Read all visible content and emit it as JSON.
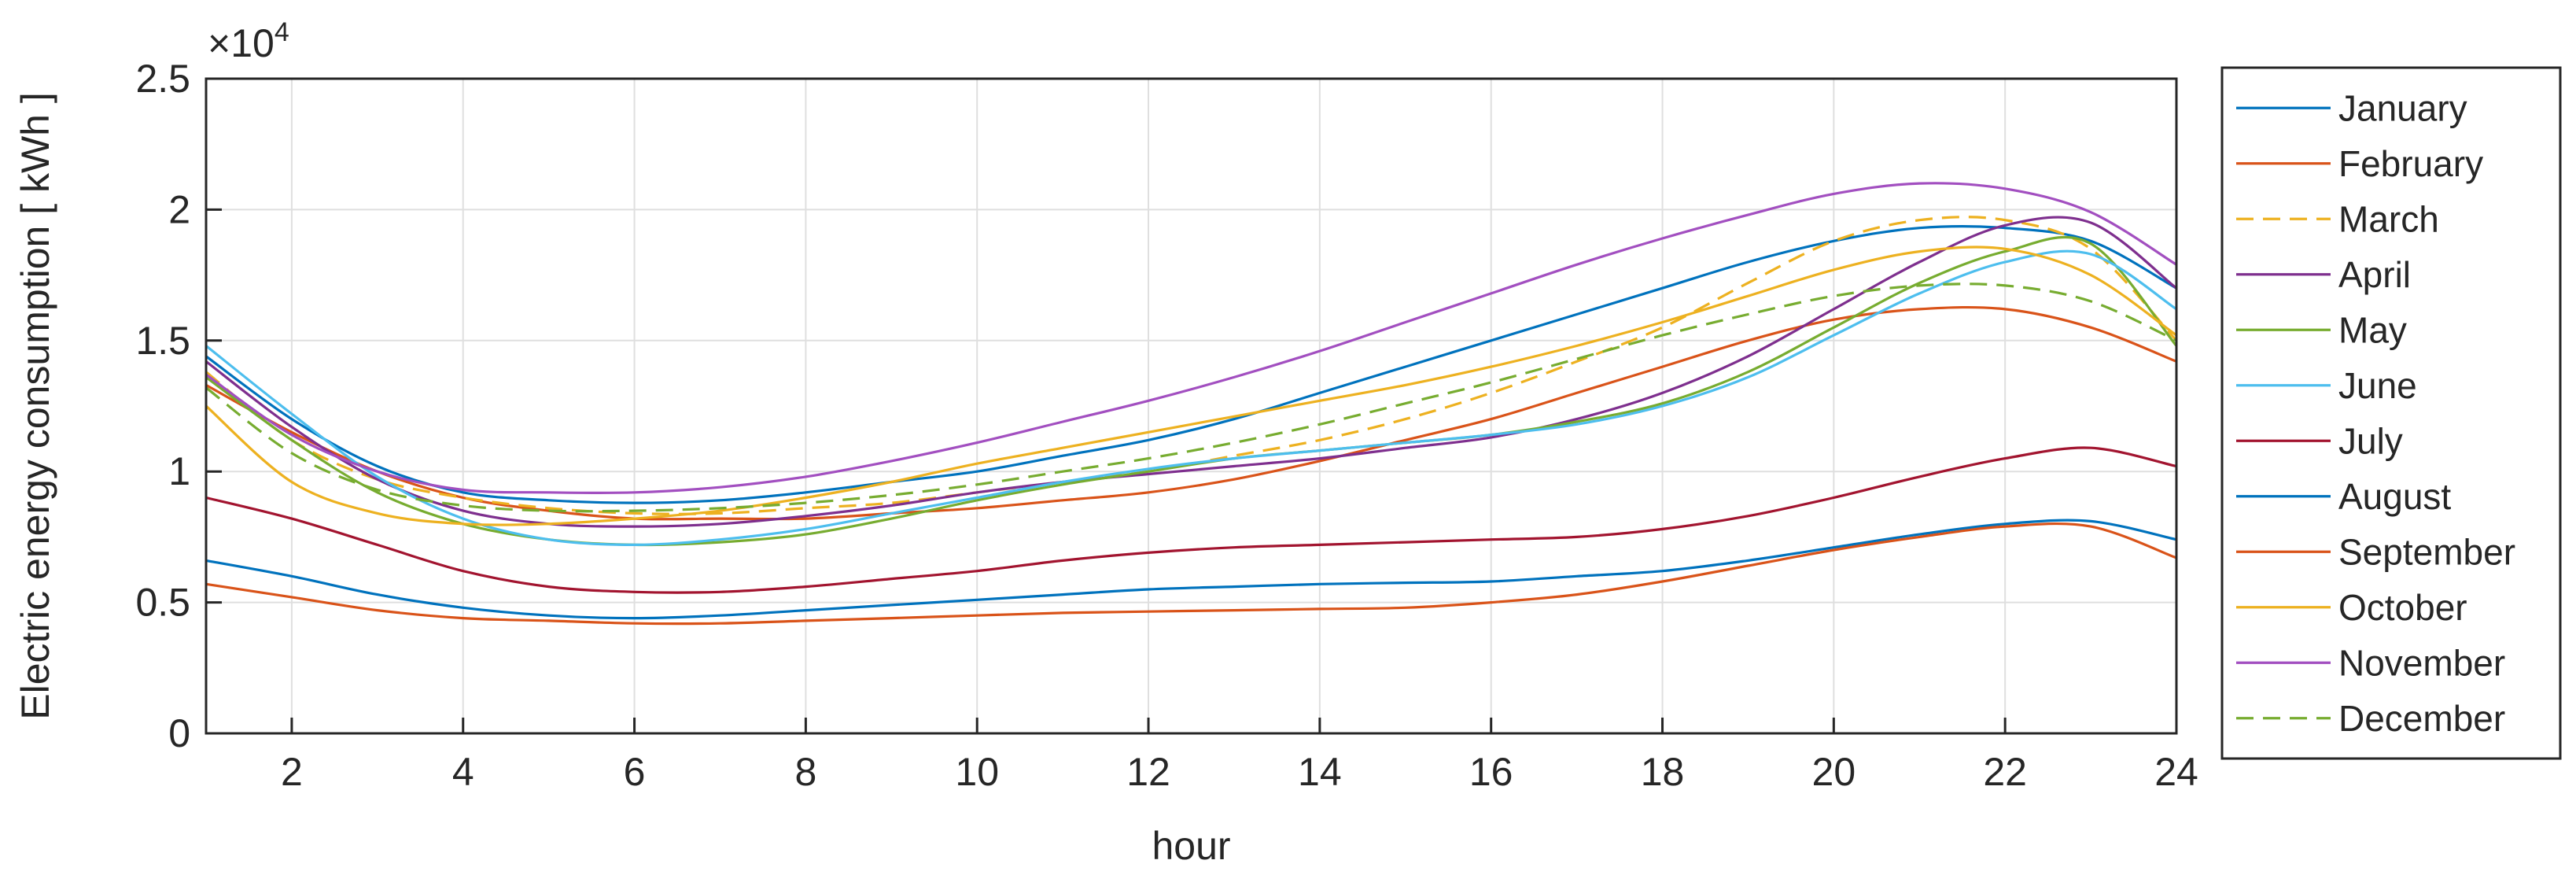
{
  "chart_data": {
    "type": "line",
    "xlabel": "hour",
    "ylabel": "Electric energy consumption  [ kWh ]",
    "exponent_label": "×10",
    "exponent_power": "4",
    "xlim": [
      1,
      24
    ],
    "ylim": [
      0,
      2.5
    ],
    "x_ticks": [
      2,
      4,
      6,
      8,
      10,
      12,
      14,
      16,
      18,
      20,
      22,
      24
    ],
    "y_ticks": [
      0,
      0.5,
      1,
      1.5,
      2,
      2.5
    ],
    "x_tick_labels": [
      "2",
      "4",
      "6",
      "8",
      "10",
      "12",
      "14",
      "16",
      "18",
      "20",
      "22",
      "24"
    ],
    "y_tick_labels": [
      "0",
      "0.5",
      "1",
      "1.5",
      "2",
      "2.5"
    ],
    "grid": true,
    "legend_position": "outside-right",
    "x": [
      1,
      2,
      3,
      4,
      5,
      6,
      7,
      8,
      9,
      10,
      11,
      12,
      13,
      14,
      15,
      16,
      17,
      18,
      19,
      20,
      21,
      22,
      23,
      24
    ],
    "series": [
      {
        "name": "January",
        "color": "#0072BD",
        "dash": false,
        "values": [
          1.44,
          1.2,
          1.02,
          0.92,
          0.89,
          0.88,
          0.89,
          0.92,
          0.96,
          1.0,
          1.06,
          1.12,
          1.2,
          1.3,
          1.4,
          1.5,
          1.6,
          1.7,
          1.8,
          1.88,
          1.93,
          1.93,
          1.88,
          1.7
        ]
      },
      {
        "name": "February",
        "color": "#D95319",
        "dash": false,
        "values": [
          1.33,
          1.15,
          1.0,
          0.9,
          0.85,
          0.82,
          0.82,
          0.82,
          0.84,
          0.86,
          0.89,
          0.92,
          0.97,
          1.04,
          1.12,
          1.2,
          1.3,
          1.4,
          1.5,
          1.58,
          1.62,
          1.62,
          1.55,
          1.42
        ]
      },
      {
        "name": "March",
        "color": "#EDB120",
        "dash": true,
        "values": [
          1.38,
          1.12,
          0.97,
          0.9,
          0.86,
          0.84,
          0.84,
          0.86,
          0.88,
          0.92,
          0.96,
          1.0,
          1.06,
          1.12,
          1.2,
          1.3,
          1.42,
          1.55,
          1.72,
          1.88,
          1.96,
          1.96,
          1.85,
          1.5
        ]
      },
      {
        "name": "April",
        "color": "#7E2F8E",
        "dash": false,
        "values": [
          1.42,
          1.17,
          0.97,
          0.85,
          0.8,
          0.79,
          0.8,
          0.83,
          0.87,
          0.92,
          0.96,
          0.99,
          1.02,
          1.05,
          1.09,
          1.13,
          1.2,
          1.3,
          1.44,
          1.62,
          1.8,
          1.94,
          1.95,
          1.7
        ]
      },
      {
        "name": "May",
        "color": "#77AC30",
        "dash": false,
        "values": [
          1.36,
          1.12,
          0.92,
          0.8,
          0.74,
          0.72,
          0.73,
          0.76,
          0.82,
          0.89,
          0.95,
          1.0,
          1.05,
          1.08,
          1.11,
          1.14,
          1.19,
          1.26,
          1.38,
          1.55,
          1.72,
          1.84,
          1.87,
          1.48
        ]
      },
      {
        "name": "June",
        "color": "#4DBEEE",
        "dash": false,
        "values": [
          1.48,
          1.22,
          0.98,
          0.82,
          0.74,
          0.72,
          0.74,
          0.78,
          0.84,
          0.9,
          0.96,
          1.01,
          1.05,
          1.08,
          1.11,
          1.14,
          1.18,
          1.25,
          1.36,
          1.52,
          1.68,
          1.8,
          1.83,
          1.62
        ]
      },
      {
        "name": "July",
        "color": "#A2142F",
        "dash": false,
        "values": [
          0.9,
          0.82,
          0.72,
          0.62,
          0.56,
          0.54,
          0.54,
          0.56,
          0.59,
          0.62,
          0.66,
          0.69,
          0.71,
          0.72,
          0.73,
          0.74,
          0.75,
          0.78,
          0.83,
          0.9,
          0.98,
          1.05,
          1.09,
          1.02
        ]
      },
      {
        "name": "August",
        "color": "#0072BD",
        "dash": false,
        "values": [
          0.66,
          0.6,
          0.53,
          0.48,
          0.45,
          0.44,
          0.45,
          0.47,
          0.49,
          0.51,
          0.53,
          0.55,
          0.56,
          0.57,
          0.575,
          0.58,
          0.6,
          0.62,
          0.66,
          0.71,
          0.76,
          0.8,
          0.81,
          0.74
        ]
      },
      {
        "name": "September",
        "color": "#D95319",
        "dash": false,
        "values": [
          0.57,
          0.52,
          0.47,
          0.44,
          0.43,
          0.42,
          0.42,
          0.43,
          0.44,
          0.45,
          0.46,
          0.465,
          0.47,
          0.475,
          0.48,
          0.5,
          0.53,
          0.58,
          0.64,
          0.7,
          0.75,
          0.79,
          0.79,
          0.67
        ]
      },
      {
        "name": "October",
        "color": "#EDB120",
        "dash": false,
        "values": [
          1.25,
          0.96,
          0.84,
          0.8,
          0.8,
          0.82,
          0.85,
          0.9,
          0.96,
          1.03,
          1.09,
          1.15,
          1.21,
          1.27,
          1.33,
          1.4,
          1.48,
          1.57,
          1.67,
          1.77,
          1.84,
          1.85,
          1.75,
          1.52
        ]
      },
      {
        "name": "November",
        "color": "#A24FC0",
        "dash": false,
        "values": [
          1.37,
          1.14,
          1.0,
          0.93,
          0.92,
          0.92,
          0.94,
          0.98,
          1.04,
          1.11,
          1.19,
          1.27,
          1.36,
          1.46,
          1.57,
          1.68,
          1.79,
          1.89,
          1.98,
          2.06,
          2.1,
          2.08,
          1.99,
          1.79
        ]
      },
      {
        "name": "December",
        "color": "#77AC30",
        "dash": true,
        "values": [
          1.32,
          1.07,
          0.93,
          0.87,
          0.85,
          0.85,
          0.86,
          0.88,
          0.91,
          0.95,
          1.0,
          1.05,
          1.11,
          1.18,
          1.26,
          1.34,
          1.43,
          1.52,
          1.6,
          1.67,
          1.71,
          1.71,
          1.65,
          1.5
        ]
      }
    ]
  }
}
